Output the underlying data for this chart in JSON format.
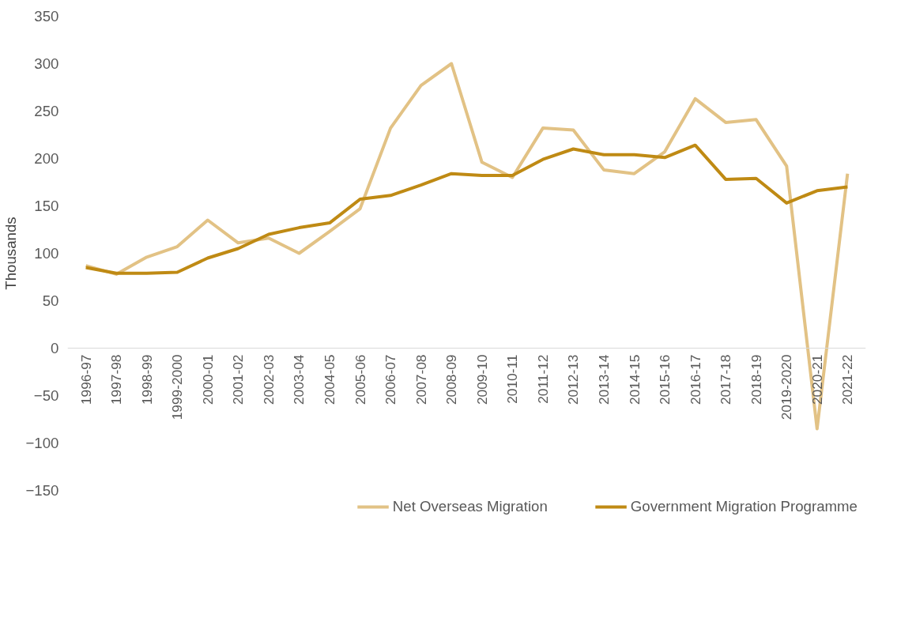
{
  "chart_data": {
    "type": "line",
    "ylabel": "Thousands",
    "categories": [
      "1996-97",
      "1997-98",
      "1998-99",
      "1999-2000",
      "2000-01",
      "2001-02",
      "2002-03",
      "2003-04",
      "2004-05",
      "2005-06",
      "2006-07",
      "2007-08",
      "2008-09",
      "2009-10",
      "2010-11",
      "2011-12",
      "2012-13",
      "2013-14",
      "2014-15",
      "2015-16",
      "2016-17",
      "2017-18",
      "2018-19",
      "2019-2020",
      "2020-21",
      "2021-22"
    ],
    "series": [
      {
        "name": "Net Overseas Migration",
        "color": "#e2c285",
        "values": [
          87,
          78,
          96,
          107,
          135,
          111,
          116,
          100,
          123,
          147,
          232,
          277,
          300,
          196,
          180,
          232,
          230,
          188,
          184,
          207,
          263,
          238,
          241,
          192,
          -85,
          184
        ]
      },
      {
        "name": "Government Migration Programme",
        "color": "#bf8a14",
        "values": [
          85,
          79,
          79,
          80,
          95,
          105,
          120,
          127,
          132,
          157,
          161,
          172,
          184,
          182,
          182,
          199,
          210,
          204,
          204,
          201,
          214,
          178,
          179,
          153,
          166,
          170
        ]
      }
    ],
    "ylim": [
      -150,
      350
    ],
    "yticks": [
      -150,
      -100,
      -50,
      0,
      50,
      100,
      150,
      200,
      250,
      300,
      350
    ],
    "grid": false,
    "legend": "bottom",
    "marker": "none",
    "line_style": "solid"
  }
}
